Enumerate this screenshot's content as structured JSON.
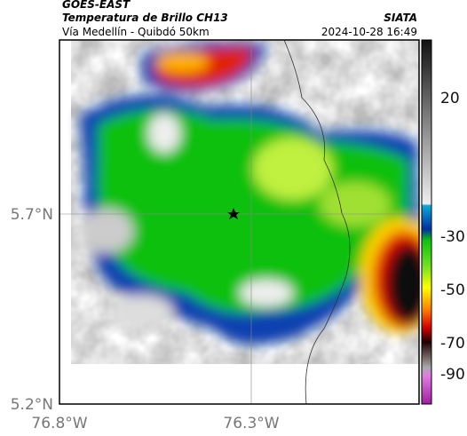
{
  "header": {
    "source": "GOES-EAST",
    "title": "Temperatura de Brillo CH13",
    "subtitle": "Vía Medellín - Quibdó 50km",
    "brand": "SIATA",
    "timestamp": "2024-10-28 16:49"
  },
  "map": {
    "lat_labels": [
      "5.7°N",
      "5.2°N"
    ],
    "lon_labels": [
      "76.8°W",
      "76.3°W"
    ]
  },
  "colorbar": {
    "tick_labels": [
      "20",
      "-30",
      "-50",
      "-70",
      "-90"
    ]
  }
}
